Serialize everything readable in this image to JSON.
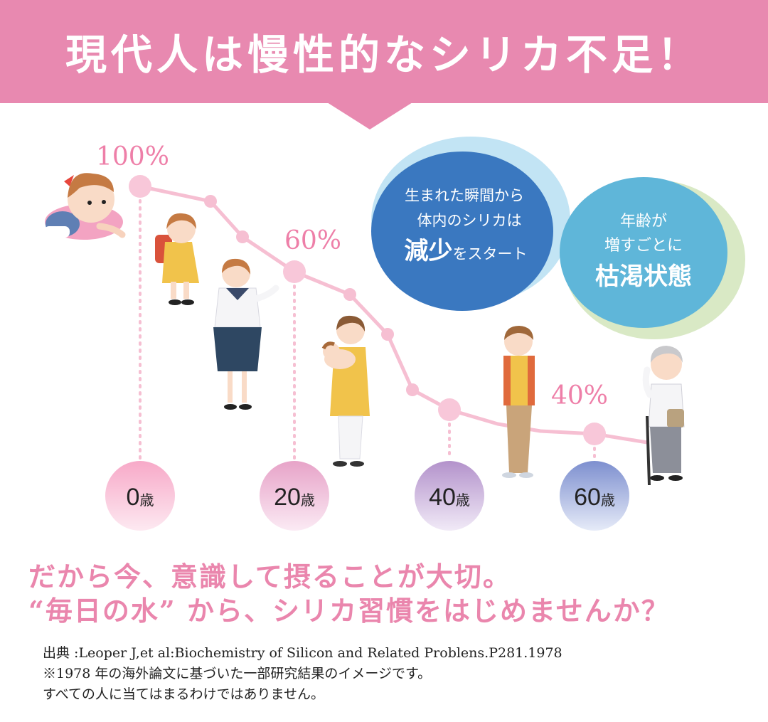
{
  "banner": {
    "title": "現代人は慢性的なシリカ不足！"
  },
  "chart_data": {
    "type": "line",
    "title": "",
    "xlabel": "",
    "ylabel": "",
    "categories": [
      "0歳",
      "20歳",
      "40歳",
      "60歳"
    ],
    "x": [
      0,
      20,
      40,
      60
    ],
    "values": [
      100,
      60,
      40,
      40
    ],
    "labeled_points": [
      {
        "label": "100%",
        "age": 0,
        "value": 100
      },
      {
        "label": "60%",
        "age": 20,
        "value": 60
      },
      {
        "label": "40%",
        "age": 60,
        "value": 40
      }
    ],
    "grid": false,
    "color": "#f6bfd2"
  },
  "ages": [
    {
      "num": "0",
      "unit": "歳"
    },
    {
      "num": "20",
      "unit": "歳"
    },
    {
      "num": "40",
      "unit": "歳"
    },
    {
      "num": "60",
      "unit": "歳"
    }
  ],
  "bubble_blue": {
    "line1": "生まれた瞬間から",
    "line2": "体内のシリカは",
    "big": "減少",
    "rest": "をスタート",
    "color": "#3a78c0"
  },
  "bubble_teal": {
    "line1": "年齢が",
    "line2": "増すごとに",
    "big": "枯渇状態",
    "color": "#5fb6d9"
  },
  "message": {
    "line1": "だから今、意識して摂ることが大切。",
    "line2": "“毎日の水” から、シリカ習慣をはじめませんか？"
  },
  "notes": {
    "source": "出典 :Leoper J,et al:Biochemistry of Silicon and Related Problens.P281.1978",
    "note1": "※1978 年の海外論文に基づいた一部研究結果のイメージです。",
    "note2": "すべての人に当てはまるわけではありません。"
  }
}
